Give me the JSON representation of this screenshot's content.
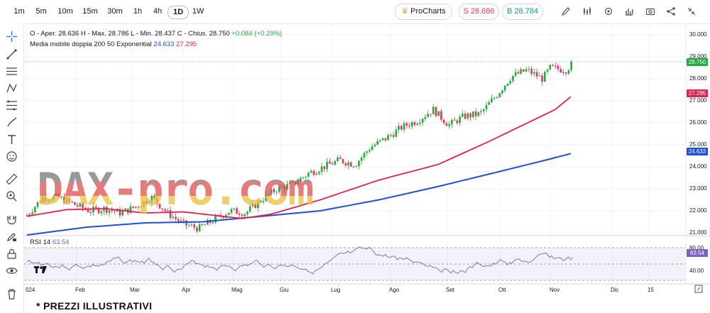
{
  "toolbar": {
    "timeframes": [
      "1m",
      "5m",
      "10m",
      "15m",
      "30m",
      "1h",
      "4h",
      "1D",
      "1W"
    ],
    "active_timeframe": "1D",
    "procharts_label": "ProCharts",
    "sell_label": "S 28.686",
    "buy_label": "B 28.784",
    "sell_color": "#f23645",
    "buy_color": "#089981"
  },
  "legend": {
    "ohlc_text": "O - Aper. 28.636  H - Max. 28.786  L - Min. 28.437  C - Chius. 28.750",
    "change_text": "+0.084 (+0.29%)",
    "ma_label": "Media mobile doppia 200 50 Exponential",
    "ma_fast_value": "24.633",
    "ma_slow_value": "27.295",
    "rsi_label": "RSI 14",
    "rsi_value": "63.54"
  },
  "price_axis": {
    "ticks": [
      "30.000",
      "29.000",
      "28.000",
      "27.000",
      "26.000",
      "25.000",
      "24.000",
      "23.000",
      "22.000",
      "21.000"
    ],
    "last_price": "28.750",
    "ma50_value": "27.295",
    "ma200_value": "24.633",
    "rsi_ticks": [
      "80.00",
      "40.00"
    ],
    "rsi_last": "63.54"
  },
  "time_axis": [
    "024",
    "Feb",
    "Mar",
    "Apr",
    "Mag",
    "Giu",
    "Lug",
    "Ago",
    "Set",
    "Ott",
    "Nov",
    "Dic",
    "15"
  ],
  "watermark": "DAX-pro.com",
  "footnote": "* PREZZI ILLUSTRATIVI",
  "colors": {
    "up": "#22ab3c",
    "down": "#e5345a",
    "ma50": "#e2214f",
    "ma200": "#1e4fd6",
    "rsi": "#7b63c6"
  },
  "chart_data": {
    "type": "candlestick",
    "ylim": [
      20.7,
      30.2
    ],
    "ma200_approx": [
      [
        0,
        20.9
      ],
      [
        60,
        21.25
      ],
      [
        120,
        21.45
      ],
      [
        180,
        21.5
      ],
      [
        240,
        21.75
      ],
      [
        300,
        22.0
      ],
      [
        360,
        22.5
      ],
      [
        420,
        23.1
      ],
      [
        480,
        23.75
      ],
      [
        530,
        24.3
      ],
      [
        559,
        24.633
      ]
    ],
    "ma50_approx": [
      [
        0,
        21.75
      ],
      [
        40,
        22.05
      ],
      [
        80,
        22.1
      ],
      [
        120,
        21.9
      ],
      [
        160,
        21.95
      ],
      [
        220,
        21.65
      ],
      [
        250,
        21.85
      ],
      [
        300,
        22.5
      ],
      [
        360,
        23.4
      ],
      [
        420,
        24.1
      ],
      [
        470,
        25.1
      ],
      [
        540,
        26.6
      ],
      [
        559,
        27.295
      ]
    ],
    "close_approx": [
      [
        0,
        21.8
      ],
      [
        20,
        22.6
      ],
      [
        40,
        22.6
      ],
      [
        60,
        22.3
      ],
      [
        80,
        22.0
      ],
      [
        100,
        22.1
      ],
      [
        120,
        21.9
      ],
      [
        140,
        22.2
      ],
      [
        160,
        22.6
      ],
      [
        180,
        21.9
      ],
      [
        200,
        21.4
      ],
      [
        220,
        21.2
      ],
      [
        240,
        21.6
      ],
      [
        260,
        22.0
      ],
      [
        280,
        21.9
      ],
      [
        300,
        22.5
      ],
      [
        320,
        23.0
      ],
      [
        340,
        23.2
      ],
      [
        360,
        23.7
      ],
      [
        380,
        24.0
      ],
      [
        400,
        24.3
      ],
      [
        420,
        24.1
      ],
      [
        440,
        24.9
      ],
      [
        460,
        25.3
      ],
      [
        480,
        25.8
      ],
      [
        500,
        26.1
      ],
      [
        520,
        26.6
      ],
      [
        540,
        25.9
      ],
      [
        560,
        26.3
      ],
      [
        580,
        26.4
      ],
      [
        600,
        27.2
      ],
      [
        620,
        28.1
      ],
      [
        640,
        28.4
      ],
      [
        660,
        28.0
      ],
      [
        670,
        28.5
      ],
      [
        690,
        28.4
      ],
      [
        700,
        28.75
      ]
    ]
  }
}
